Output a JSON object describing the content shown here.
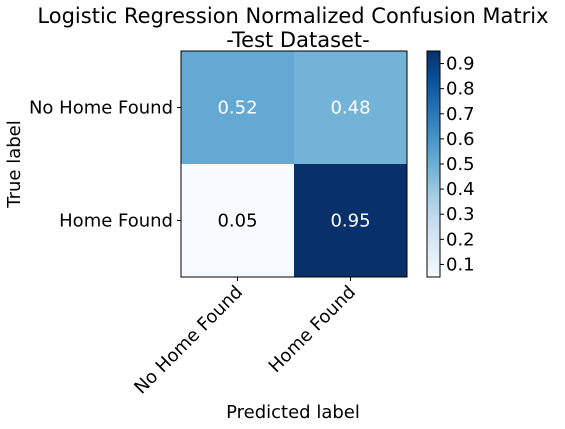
{
  "chart_data": {
    "type": "heatmap",
    "title_lines": [
      "Logistic Regression Normalized Confusion Matrix",
      "-Test Dataset-"
    ],
    "xlabel": "Predicted label",
    "ylabel": "True label",
    "x_categories": [
      "No Home Found",
      "Home Found"
    ],
    "y_categories": [
      "No Home Found",
      "Home Found"
    ],
    "values": [
      [
        0.52,
        0.48
      ],
      [
        0.05,
        0.95
      ]
    ],
    "value_labels": [
      [
        "0.52",
        "0.48"
      ],
      [
        "0.05",
        "0.95"
      ]
    ],
    "colormap": "Blues",
    "vmin": 0.05,
    "vmax": 0.95,
    "colorbar_ticks": [
      0.1,
      0.2,
      0.3,
      0.4,
      0.5,
      0.6,
      0.7,
      0.8,
      0.9
    ],
    "colorbar_tick_labels": [
      "0.1",
      "0.2",
      "0.3",
      "0.4",
      "0.5",
      "0.6",
      "0.7",
      "0.8",
      "0.9"
    ]
  }
}
